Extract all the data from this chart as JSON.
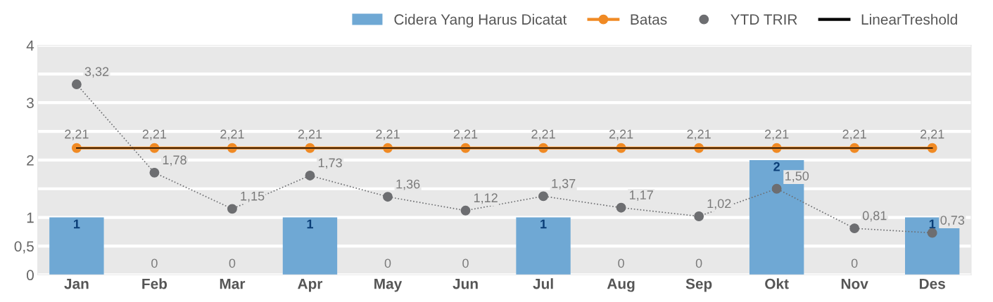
{
  "chart_data": {
    "type": "bar",
    "categories": [
      "Jan",
      "Feb",
      "Mar",
      "Apr",
      "May",
      "Jun",
      "Jul",
      "Aug",
      "Sep",
      "Okt",
      "Nov",
      "Des"
    ],
    "series": [
      {
        "name": "Cidera Yang Harus Dicatat",
        "color": "#6fa8d4",
        "values": [
          1,
          0,
          0,
          1,
          0,
          0,
          1,
          0,
          0,
          2,
          0,
          1
        ],
        "value_labels": [
          "1",
          "0",
          "0",
          "1",
          "0",
          "0",
          "1",
          "0",
          "0",
          "2",
          "0",
          "1"
        ]
      },
      {
        "name": "Batas",
        "type": "line",
        "color": "#f08a24",
        "marker": "circle",
        "line_style": "solid",
        "values": [
          2.21,
          2.21,
          2.21,
          2.21,
          2.21,
          2.21,
          2.21,
          2.21,
          2.21,
          2.21,
          2.21,
          2.21
        ],
        "value_labels": [
          "2,21",
          "2,21",
          "2,21",
          "2,21",
          "2,21",
          "2,21",
          "2,21",
          "2,21",
          "2,21",
          "2,21",
          "2,21",
          "2,21"
        ]
      },
      {
        "name": "YTD TRIR",
        "type": "line",
        "color": "#6d6e71",
        "marker": "circle",
        "line_style": "dotted",
        "values": [
          3.32,
          1.78,
          1.15,
          1.73,
          1.36,
          1.12,
          1.37,
          1.17,
          1.02,
          1.5,
          0.81,
          0.73
        ],
        "value_labels": [
          "3,32",
          "1,78",
          "1,15",
          "1,73",
          "1,36",
          "1,12",
          "1,37",
          "1,17",
          "1,02",
          "1,50",
          "0,81",
          "0,73"
        ]
      },
      {
        "name": "LinearTreshold",
        "type": "line",
        "color": "#000000",
        "marker": "none",
        "line_style": "solid",
        "values": [
          2.21,
          2.21,
          2.21,
          2.21,
          2.21,
          2.21,
          2.21,
          2.21,
          2.21,
          2.21,
          2.21,
          2.21
        ]
      }
    ],
    "ylim": [
      0,
      4
    ],
    "yticks": [
      0,
      {
        "value": 0.5,
        "label": "0,5"
      },
      1,
      {
        "value": 1.5,
        "label": null
      },
      2,
      {
        "value": 2.5,
        "label": null
      },
      3,
      {
        "value": 3.5,
        "label": null
      },
      4
    ],
    "grid": "y",
    "legend": "top right"
  }
}
